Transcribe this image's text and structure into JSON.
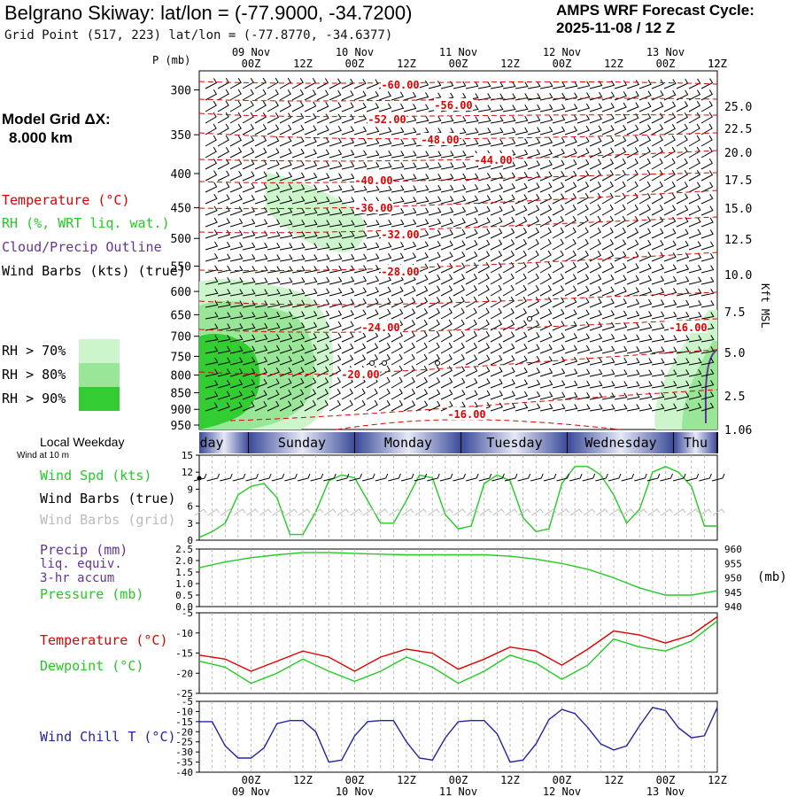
{
  "header": {
    "title": "Belgrano Skiway:  lat/lon = (-77.9000, -34.7200)",
    "subtitle": "Grid Point (517, 223) lat/lon = (-77.8770, -34.6377)",
    "cycle_line1": "AMPS WRF Forecast Cycle:",
    "cycle_line2": "2025-11-08 / 12  Z",
    "grid_dx_line1": "Model Grid ΔX:",
    "grid_dx_line2": "8.000 km"
  },
  "legend": {
    "temperature": "Temperature (°C)",
    "rh": "RH (%, WRT liq. wat.)",
    "cloud": "Cloud/Precip Outline",
    "wind": "Wind Barbs (kts) (true)",
    "rh70": "RH > 70%",
    "rh80": "RH > 80%",
    "rh90": "RH > 90%",
    "local_weekday": "Local Weekday",
    "wind_10m": "Wind at 10 m",
    "wind_spd": "Wind Spd (kts)",
    "wind_barbs_true": "Wind Barbs (true)",
    "wind_barbs_grid": "Wind Barbs (grid)",
    "precip1": "Precip (mm)",
    "precip2": "liq. equiv.",
    "precip3": "3-hr accum",
    "pressure": "Pressure (mb)",
    "pressure_unit": "(mb)",
    "temp2": "Temperature (°C)",
    "dewpoint": "Dewpoint (°C)",
    "windchill": "Wind Chill T (°C)",
    "kft": "Kft MSL",
    "p_axis": "P (mb)"
  },
  "colors": {
    "temperature": "#e00000",
    "rh70": "#ccf5cc",
    "rh80": "#99e699",
    "rh90": "#33cc33",
    "green_line": "#22cc22",
    "purple": "#663399",
    "windchill": "#2222aa",
    "weekday_band": "#3a4a9a"
  },
  "chart_data": [
    {
      "type": "contour",
      "title": "Time-height cross-section",
      "ylabel": "P (mb)",
      "y2label": "Kft MSL",
      "ylim": [
        950,
        300
      ],
      "pressure_ticks": [
        300,
        350,
        400,
        450,
        500,
        550,
        600,
        650,
        700,
        750,
        800,
        850,
        900,
        950
      ],
      "kft_ticks": [
        "25.0",
        "22.5",
        "20.0",
        "17.5",
        "15.0",
        "12.5",
        "10.0",
        "7.5",
        "5.0",
        "2.5",
        "1.06"
      ],
      "time_top_labels": [
        {
          "h": 0,
          "date": "09 Nov",
          "time": "00Z"
        },
        {
          "h": 12,
          "date": "",
          "time": "12Z"
        },
        {
          "h": 24,
          "date": "10 Nov",
          "time": "00Z"
        },
        {
          "h": 36,
          "date": "",
          "time": "12Z"
        },
        {
          "h": 48,
          "date": "11 Nov",
          "time": "00Z"
        },
        {
          "h": 60,
          "date": "",
          "time": "12Z"
        },
        {
          "h": 72,
          "date": "12 Nov",
          "time": "00Z"
        },
        {
          "h": 84,
          "date": "",
          "time": "12Z"
        },
        {
          "h": 96,
          "date": "13 Nov",
          "time": "00Z"
        },
        {
          "h": 108,
          "date": "",
          "time": "12Z"
        }
      ],
      "isotherm_labels": [
        "-60.00",
        "-56.00",
        "-52.00",
        "-48.00",
        "-44.00",
        "-40.00",
        "-36.00",
        "-32.00",
        "-28.00",
        "-24.00",
        "-20.00",
        "-16.00",
        "-16.00"
      ]
    },
    {
      "type": "band",
      "weekdays": [
        "day",
        "Sunday",
        "Monday",
        "Tuesday",
        "Wednesday",
        "Thu"
      ]
    },
    {
      "type": "line",
      "name": "Wind Spd (kts)",
      "ylim": [
        0,
        15
      ],
      "yticks": [
        "15",
        "12",
        "9",
        "6",
        "3",
        "0"
      ],
      "times_h": [
        -12,
        -9,
        -6,
        -3,
        0,
        3,
        6,
        9,
        12,
        15,
        18,
        21,
        24,
        27,
        30,
        33,
        36,
        39,
        42,
        45,
        48,
        51,
        54,
        57,
        60,
        63,
        66,
        69,
        72,
        75,
        78,
        81,
        84,
        87,
        90,
        93,
        96,
        99,
        102,
        105,
        108
      ],
      "values": [
        0.5,
        1.5,
        3.0,
        8.0,
        9.5,
        10.0,
        7.5,
        1.0,
        1.0,
        5.0,
        10.5,
        11.5,
        11.0,
        7.0,
        3.0,
        3.0,
        7.0,
        11.5,
        11.0,
        4.5,
        2.0,
        2.5,
        10.0,
        11.5,
        10.5,
        4.0,
        1.5,
        2.0,
        10.0,
        13.0,
        13.0,
        11.5,
        8.0,
        3.0,
        5.5,
        12.0,
        13.0,
        12.0,
        9.5,
        2.5,
        2.5
      ]
    },
    {
      "type": "line",
      "name": "Pressure (mb)",
      "precip_ylim": [
        0,
        2.5
      ],
      "precip_ticks": [
        "2.5",
        "2.0",
        "1.5",
        "1.0",
        "0.5",
        "0.0"
      ],
      "pressure_ticks": [
        "960",
        "955",
        "950",
        "945",
        "940"
      ],
      "ylim": [
        940,
        960
      ],
      "times_h": [
        -12,
        -6,
        0,
        6,
        12,
        18,
        24,
        30,
        36,
        42,
        48,
        54,
        60,
        66,
        72,
        78,
        84,
        90,
        96,
        102,
        108
      ],
      "values": [
        953.5,
        955.5,
        957.0,
        958.0,
        958.8,
        958.8,
        958.5,
        958.2,
        958.0,
        958.0,
        958.0,
        958.0,
        957.5,
        956.5,
        955.0,
        953.0,
        950.0,
        946.5,
        944.0,
        944.0,
        945.5
      ]
    },
    {
      "type": "line",
      "name": "Temperature / Dewpoint (°C)",
      "ylim": [
        -25,
        -5
      ],
      "yticks": [
        "-5",
        "-10",
        "-15",
        "-20",
        "-25"
      ],
      "times_h": [
        -12,
        -6,
        0,
        6,
        12,
        18,
        24,
        30,
        36,
        42,
        48,
        54,
        60,
        66,
        72,
        78,
        84,
        90,
        96,
        102,
        108
      ],
      "series": [
        {
          "name": "Temperature",
          "values": [
            -15.5,
            -16.5,
            -19.5,
            -17.0,
            -14.5,
            -16.0,
            -19.5,
            -16.0,
            -14.0,
            -15.0,
            -19.0,
            -16.5,
            -13.5,
            -14.5,
            -18.0,
            -14.0,
            -9.5,
            -10.5,
            -12.5,
            -10.5,
            -6.0
          ]
        },
        {
          "name": "Dewpoint",
          "values": [
            -17.0,
            -18.5,
            -22.5,
            -20.0,
            -16.5,
            -19.5,
            -22.0,
            -19.5,
            -16.0,
            -18.5,
            -22.5,
            -19.5,
            -15.5,
            -17.5,
            -21.5,
            -18.0,
            -11.5,
            -13.5,
            -14.5,
            -12.0,
            -7.0
          ]
        }
      ]
    },
    {
      "type": "line",
      "name": "Wind Chill T (°C)",
      "ylim": [
        -40,
        -5
      ],
      "yticks": [
        "-5",
        "-10",
        "-15",
        "-20",
        "-25",
        "-30",
        "-35",
        "-40"
      ],
      "times_h": [
        -12,
        -9,
        -6,
        -3,
        0,
        3,
        6,
        9,
        12,
        15,
        18,
        21,
        24,
        27,
        30,
        33,
        36,
        39,
        42,
        45,
        48,
        51,
        54,
        57,
        60,
        63,
        66,
        69,
        72,
        75,
        78,
        81,
        84,
        87,
        90,
        93,
        96,
        99,
        102,
        105,
        108
      ],
      "values": [
        -15,
        -15,
        -27,
        -33,
        -33,
        -28,
        -16,
        -14.5,
        -14.5,
        -20,
        -35,
        -34,
        -22,
        -15,
        -14.5,
        -14.5,
        -25,
        -33,
        -34,
        -23,
        -15,
        -14.5,
        -14.5,
        -21,
        -35,
        -34,
        -26,
        -14,
        -9,
        -11,
        -18,
        -26,
        -29,
        -27,
        -17,
        -8,
        -9.5,
        -18,
        -23,
        -22,
        -8
      ]
    },
    {
      "type": "axis",
      "bottom_labels": [
        {
          "h": 0,
          "date": "09 Nov",
          "time": "00Z"
        },
        {
          "h": 12,
          "date": "",
          "time": "12Z"
        },
        {
          "h": 24,
          "date": "10 Nov",
          "time": "00Z"
        },
        {
          "h": 36,
          "date": "",
          "time": "12Z"
        },
        {
          "h": 48,
          "date": "11 Nov",
          "time": "00Z"
        },
        {
          "h": 60,
          "date": "",
          "time": "12Z"
        },
        {
          "h": 72,
          "date": "12 Nov",
          "time": "00Z"
        },
        {
          "h": 84,
          "date": "",
          "time": "12Z"
        },
        {
          "h": 96,
          "date": "13 Nov",
          "time": "00Z"
        },
        {
          "h": 108,
          "date": "",
          "time": "12Z"
        }
      ]
    }
  ]
}
